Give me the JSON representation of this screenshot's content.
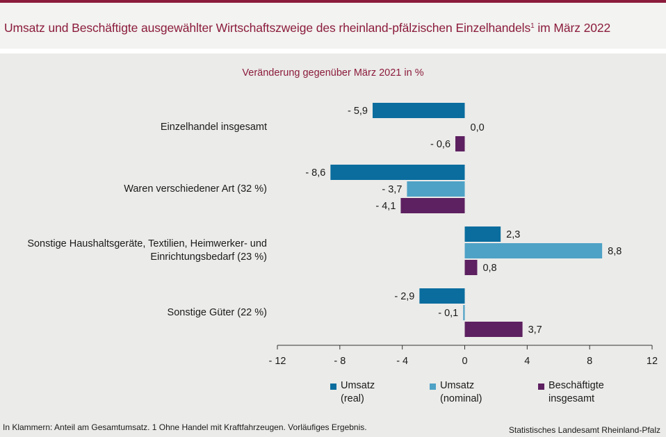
{
  "header": {
    "title": "Umsatz und Beschäftigte ausgewählter Wirtschaftszweige des rheinland-pfälzischen Einzelhandels",
    "title_sup": "1",
    "title_suffix": " im März 2022"
  },
  "chart_data": {
    "type": "bar",
    "orientation": "horizontal",
    "subtitle": "Veränderung gegenüber März 2021 in %",
    "categories": [
      [
        "Einzelhandel insgesamt"
      ],
      [
        "Waren verschiedener Art (32 %)"
      ],
      [
        "Sonstige Haushaltsgeräte, Textilien, Heimwerker- und",
        "Einrichtungsbedarf (23 %)"
      ],
      [
        "Sonstige Güter (22 %)"
      ]
    ],
    "series": [
      {
        "name": "Umsatz (real)",
        "legend": [
          "Umsatz",
          "(real)"
        ],
        "color": "#0a6d9e",
        "values": [
          -5.9,
          -8.6,
          2.3,
          -2.9
        ],
        "labels": [
          "- 5,9",
          "- 8,6",
          "2,3",
          "- 2,9"
        ]
      },
      {
        "name": "Umsatz (nominal)",
        "legend": [
          "Umsatz",
          "(nominal)"
        ],
        "color": "#4ea2c6",
        "values": [
          0.0,
          -3.7,
          8.8,
          -0.1
        ],
        "labels": [
          "0,0",
          "- 3,7",
          "8,8",
          "- 0,1"
        ]
      },
      {
        "name": "Beschäftigte insgesamt",
        "legend": [
          "Beschäftigte",
          "insgesamt"
        ],
        "color": "#5d2060",
        "values": [
          -0.6,
          -4.1,
          0.8,
          3.7
        ],
        "labels": [
          "- 0,6",
          "- 4,1",
          "0,8",
          "3,7"
        ]
      }
    ],
    "xlim": [
      -12,
      12
    ],
    "xticks": [
      -12,
      -8,
      -4,
      0,
      4,
      8,
      12
    ],
    "xtick_labels": [
      "- 12",
      "- 8",
      "- 4",
      "0",
      "4",
      "8",
      "12"
    ],
    "grid": false,
    "legend_position": "bottom"
  },
  "footer": {
    "footnote": "In Klammern: Anteil am Gesamtumsatz. 1 Ohne Handel mit Kraftfahrzeugen. Vorläufiges Ergebnis.",
    "source": "Statistisches Landesamt Rheinland-Pfalz"
  }
}
